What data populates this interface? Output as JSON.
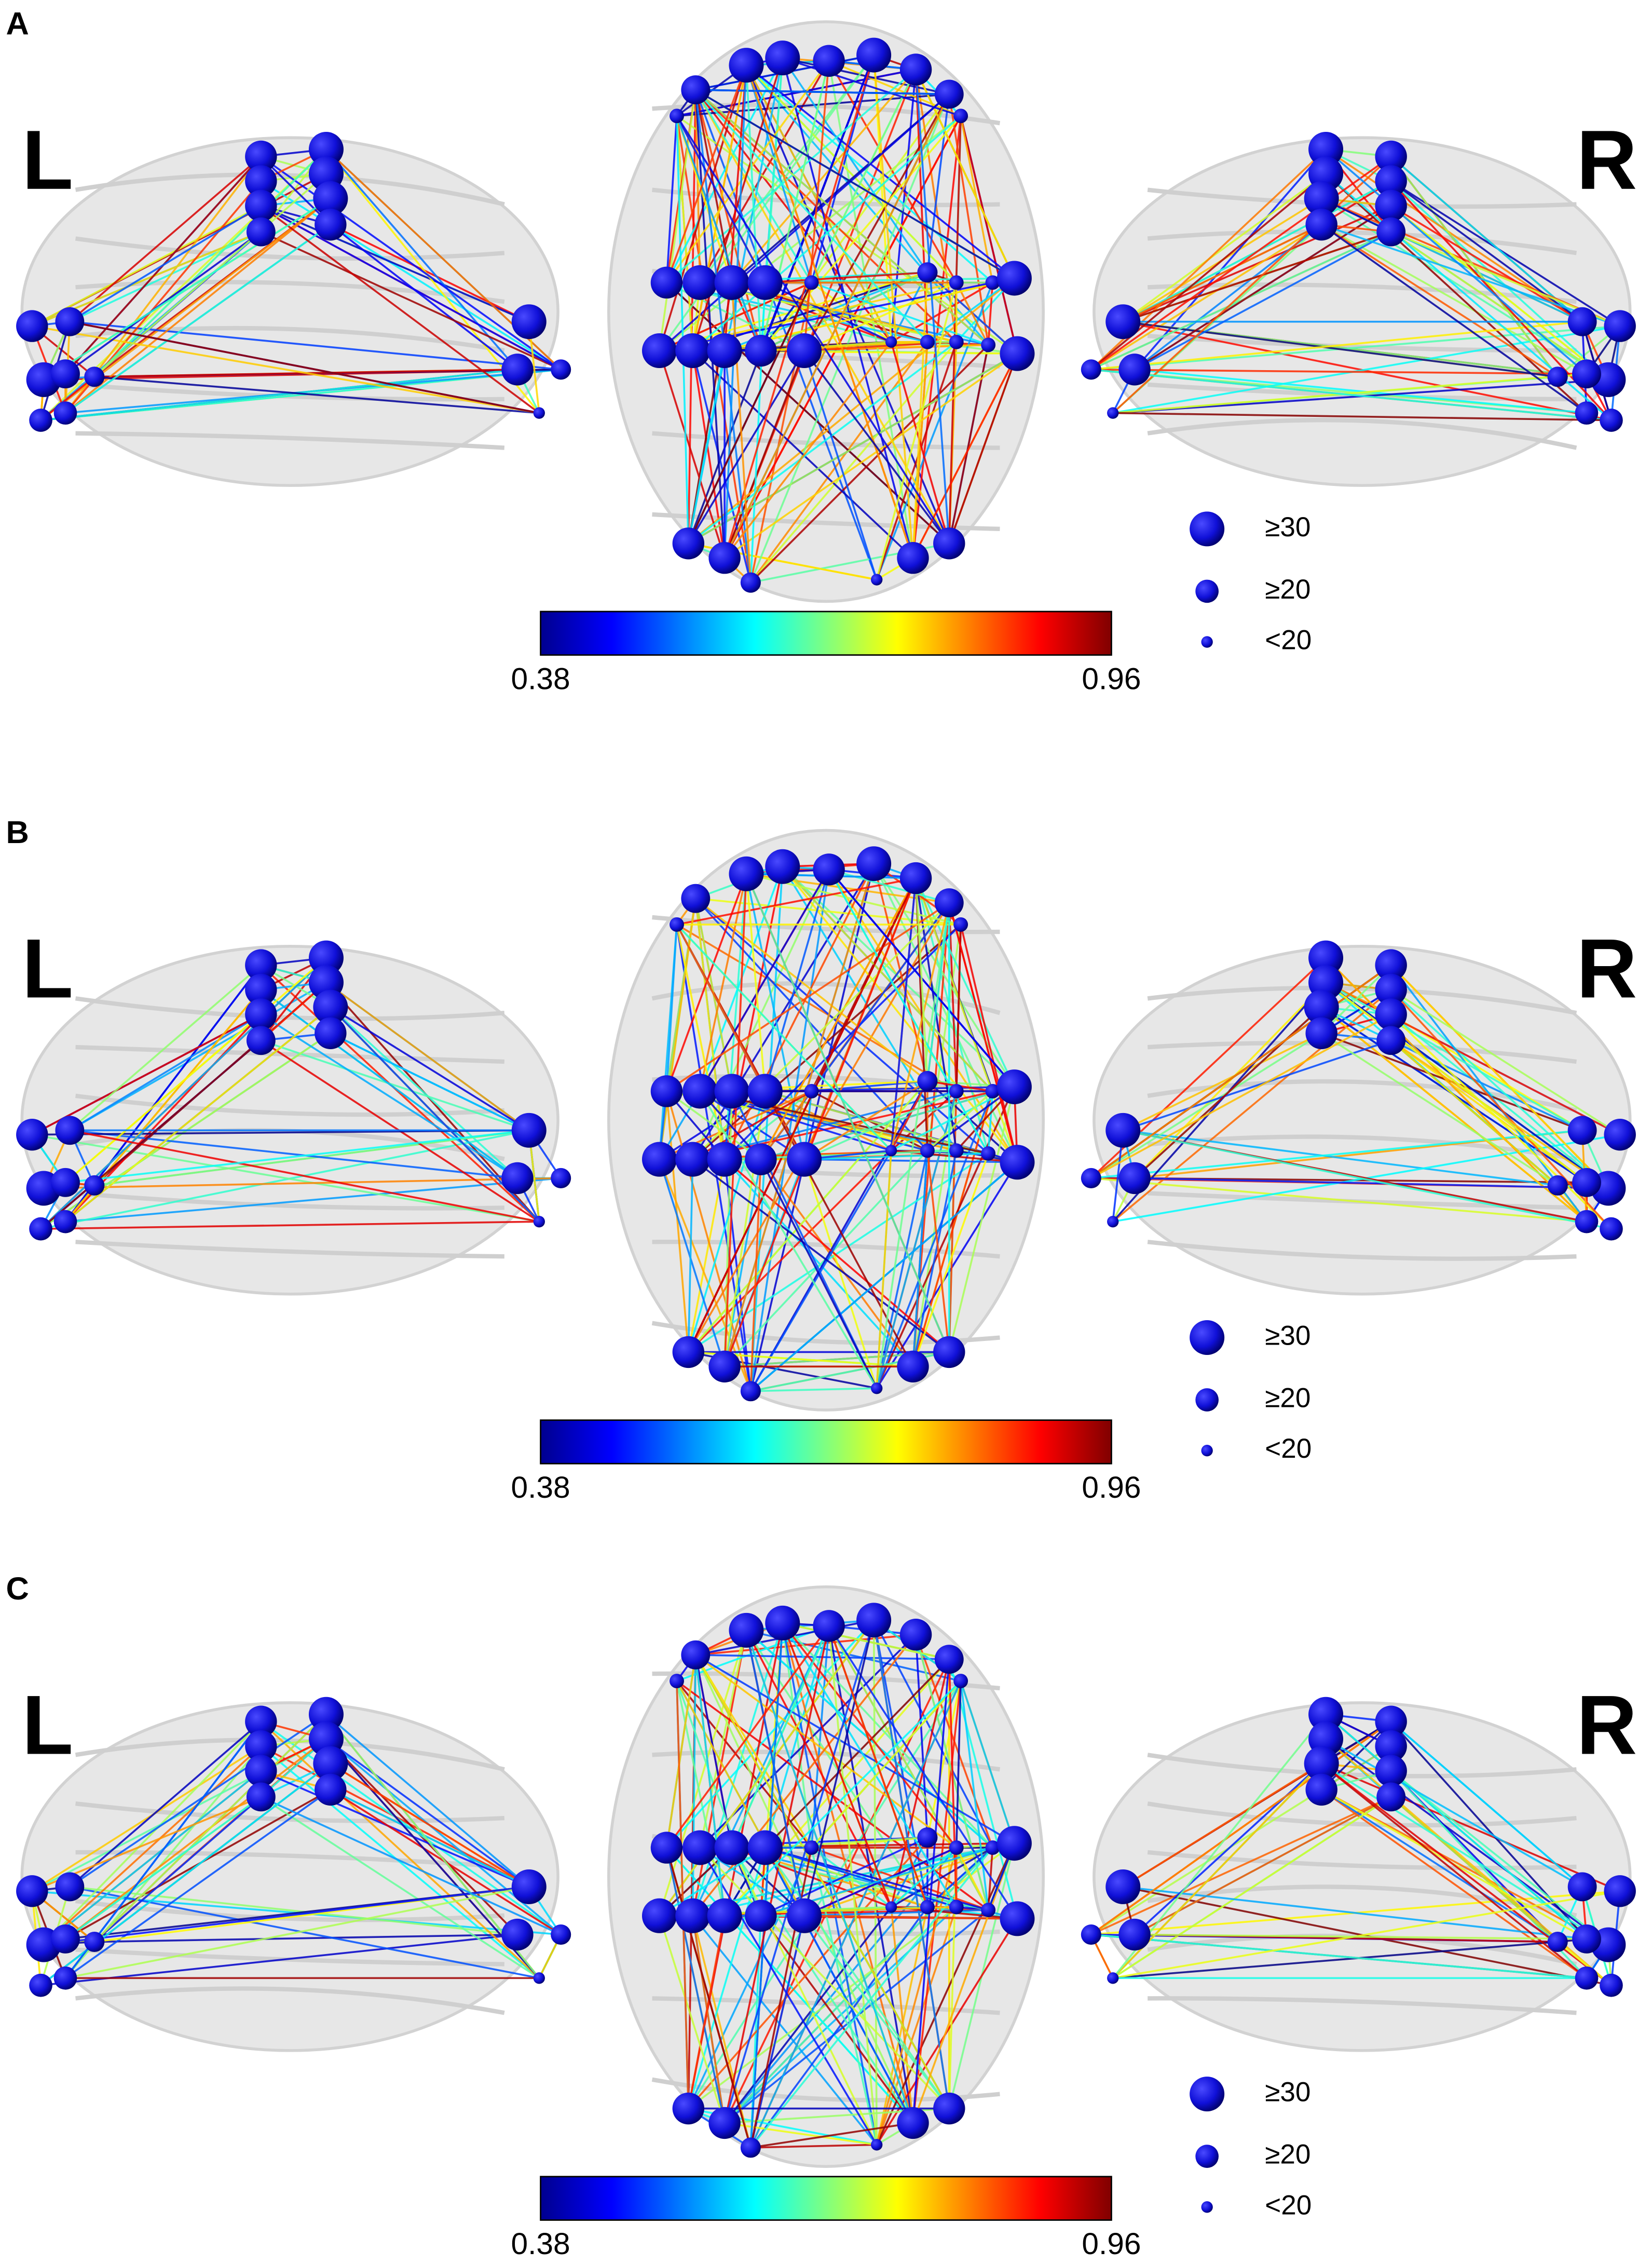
{
  "panels": [
    {
      "label": "A",
      "left_label": "L",
      "right_label": "R",
      "colorbar": {
        "min": "0.38",
        "max": "0.96"
      },
      "legend": [
        "≥30",
        "≥20",
        "<20"
      ]
    },
    {
      "label": "B",
      "left_label": "L",
      "right_label": "R",
      "colorbar": {
        "min": "0.38",
        "max": "0.96"
      },
      "legend": [
        "≥30",
        "≥20",
        "<20"
      ]
    },
    {
      "label": "C",
      "left_label": "L",
      "right_label": "R",
      "colorbar": {
        "min": "0.38",
        "max": "0.96"
      },
      "legend": [
        "≥30",
        "≥20",
        "<20"
      ]
    }
  ]
}
